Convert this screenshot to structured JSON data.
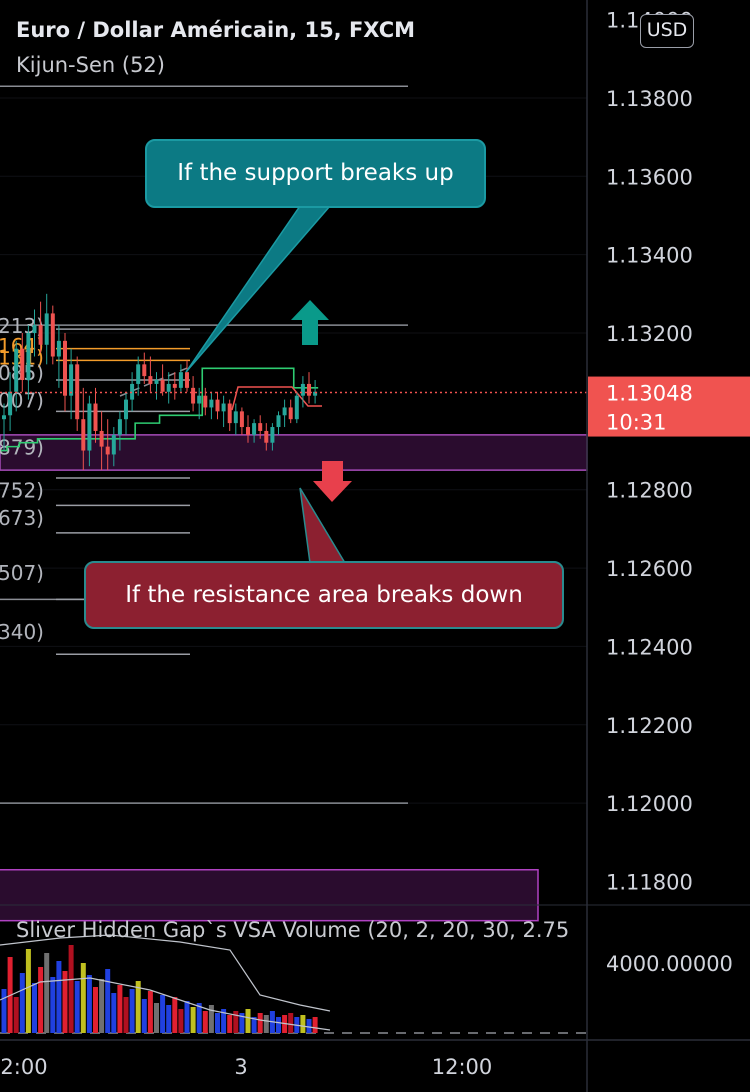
{
  "header": {
    "symbol_title": "Euro / Dollar Américain, 15, FXCM",
    "indicator_title": "Kijun-Sen (52)",
    "currency": "USD"
  },
  "price_axis": {
    "labels": [
      "1.14000",
      "1.13800",
      "1.13600",
      "1.13400",
      "1.13200",
      "1.12800",
      "1.12600",
      "1.12400",
      "1.12200",
      "1.12000",
      "1.11800"
    ],
    "current_price": "1.13048",
    "countdown": "10:31",
    "current_price_color": "#f05350"
  },
  "time_axis": {
    "labels": [
      "2:00",
      "3",
      "12:00"
    ]
  },
  "annotations": {
    "callout_up": "If the support breaks up",
    "callout_down": "If the resistance area breaks down",
    "arrow_up_color": "#0a9a8a",
    "arrow_down_color": "#e8404c"
  },
  "level_labels": [
    "213)",
    "164)",
    "131)",
    "085)",
    "007)",
    "879)",
    "752)",
    "673)",
    "507)",
    "340)"
  ],
  "volume_panel": {
    "title": "Sliver Hidden Gap`s VSA Volume (20, 2, 20, 30, 2.75",
    "axis_label": "4000.00000"
  },
  "chart_data": {
    "type": "candlestick",
    "symbol": "Euro / Dollar Américain",
    "timeframe": "15",
    "indicator": "Kijun-Sen (52)",
    "ylim": [
      1.1174,
      1.1405
    ],
    "last_price": 1.13048,
    "support_resistance_levels": [
      1.1383,
      1.1322,
      1.1252,
      1.12
    ],
    "resistance_zone": [
      1.1285,
      1.1294
    ],
    "lower_zone": [
      1.117,
      1.1183
    ],
    "candles": [
      [
        1.1298,
        1.1302,
        1.129,
        1.1299
      ],
      [
        1.1299,
        1.131,
        1.1295,
        1.1305
      ],
      [
        1.1305,
        1.1318,
        1.13,
        1.1316
      ],
      [
        1.1316,
        1.132,
        1.1305,
        1.1308
      ],
      [
        1.1308,
        1.1322,
        1.1303,
        1.132
      ],
      [
        1.132,
        1.1326,
        1.1314,
        1.1322
      ],
      [
        1.1322,
        1.1328,
        1.1315,
        1.1317
      ],
      [
        1.1317,
        1.133,
        1.1312,
        1.1325
      ],
      [
        1.1325,
        1.1327,
        1.1312,
        1.1314
      ],
      [
        1.1314,
        1.1322,
        1.1306,
        1.1318
      ],
      [
        1.1318,
        1.132,
        1.13,
        1.1304
      ],
      [
        1.1304,
        1.1316,
        1.1298,
        1.1312
      ],
      [
        1.1312,
        1.1314,
        1.1295,
        1.1298
      ],
      [
        1.1298,
        1.1306,
        1.1285,
        1.129
      ],
      [
        1.129,
        1.1304,
        1.1286,
        1.1302
      ],
      [
        1.1302,
        1.1306,
        1.1292,
        1.1295
      ],
      [
        1.1295,
        1.13,
        1.1285,
        1.1291
      ],
      [
        1.1291,
        1.1298,
        1.1285,
        1.1289
      ],
      [
        1.1289,
        1.1296,
        1.1286,
        1.1294
      ],
      [
        1.1294,
        1.13,
        1.129,
        1.1298
      ],
      [
        1.1298,
        1.1305,
        1.1294,
        1.1303
      ],
      [
        1.1303,
        1.131,
        1.13,
        1.1307
      ],
      [
        1.1307,
        1.1314,
        1.1304,
        1.1312
      ],
      [
        1.1312,
        1.1315,
        1.1307,
        1.1309
      ],
      [
        1.1309,
        1.1314,
        1.1305,
        1.1307
      ],
      [
        1.1307,
        1.131,
        1.1303,
        1.1308
      ],
      [
        1.1308,
        1.1312,
        1.1304,
        1.1305
      ],
      [
        1.1305,
        1.131,
        1.1302,
        1.1307
      ],
      [
        1.1307,
        1.131,
        1.1303,
        1.1306
      ],
      [
        1.1306,
        1.1312,
        1.1305,
        1.131
      ],
      [
        1.131,
        1.1313,
        1.1305,
        1.1306
      ],
      [
        1.1306,
        1.1309,
        1.13,
        1.1302
      ],
      [
        1.1302,
        1.1306,
        1.1298,
        1.1304
      ],
      [
        1.1304,
        1.1306,
        1.1299,
        1.1301
      ],
      [
        1.1301,
        1.1305,
        1.1298,
        1.1303
      ],
      [
        1.1303,
        1.1305,
        1.1298,
        1.13
      ],
      [
        1.13,
        1.1304,
        1.1296,
        1.1302
      ],
      [
        1.1302,
        1.1303,
        1.1295,
        1.1297
      ],
      [
        1.1297,
        1.1302,
        1.1294,
        1.13
      ],
      [
        1.13,
        1.1301,
        1.1294,
        1.1296
      ],
      [
        1.1296,
        1.1299,
        1.1292,
        1.1294
      ],
      [
        1.1294,
        1.1298,
        1.1292,
        1.1297
      ],
      [
        1.1297,
        1.1299,
        1.1293,
        1.1295
      ],
      [
        1.1295,
        1.1297,
        1.129,
        1.1292
      ],
      [
        1.1292,
        1.1297,
        1.129,
        1.1296
      ],
      [
        1.1296,
        1.13,
        1.1294,
        1.1299
      ],
      [
        1.1299,
        1.1303,
        1.1296,
        1.1301
      ],
      [
        1.1301,
        1.1303,
        1.1297,
        1.1298
      ],
      [
        1.1298,
        1.1305,
        1.1297,
        1.1304
      ],
      [
        1.1304,
        1.1309,
        1.1301,
        1.1307
      ],
      [
        1.1307,
        1.131,
        1.1302,
        1.1304
      ],
      [
        1.1304,
        1.1308,
        1.1302,
        1.1305
      ]
    ],
    "volume": [
      22,
      38,
      18,
      30,
      42,
      25,
      33,
      40,
      28,
      36,
      31,
      44,
      26,
      35,
      29,
      23,
      27,
      32,
      20,
      24,
      18,
      22,
      26,
      17,
      21,
      15,
      19,
      14,
      18,
      12,
      16,
      13,
      15,
      11,
      14,
      10,
      12,
      9,
      11,
      10,
      12,
      8,
      10,
      9,
      11,
      8,
      9,
      10,
      8,
      9,
      7,
      8
    ],
    "series": [
      {
        "name": "Kijun-Sen (52)",
        "values": [
          1.129,
          1.1291,
          1.1291,
          1.1292,
          1.1292,
          1.1292,
          1.1293,
          1.1293,
          1.1293,
          1.1293,
          1.1293,
          1.1293,
          1.1293,
          1.1293,
          1.1293,
          1.1293,
          1.1293,
          1.1293,
          1.1293,
          1.1293,
          1.1293,
          1.1293,
          1.1297,
          1.1297,
          1.1297,
          1.1297,
          1.1299,
          1.1299,
          1.1299,
          1.1299,
          1.1299,
          1.1299,
          1.1299,
          1.1311,
          1.1311,
          1.1311,
          1.1311,
          1.1311,
          1.1311,
          1.1311,
          1.1311,
          1.1311,
          1.1311,
          1.1311,
          1.1311,
          1.1311,
          1.1311,
          1.1311,
          1.1306,
          1.1306,
          1.1306,
          1.1306
        ]
      }
    ]
  }
}
